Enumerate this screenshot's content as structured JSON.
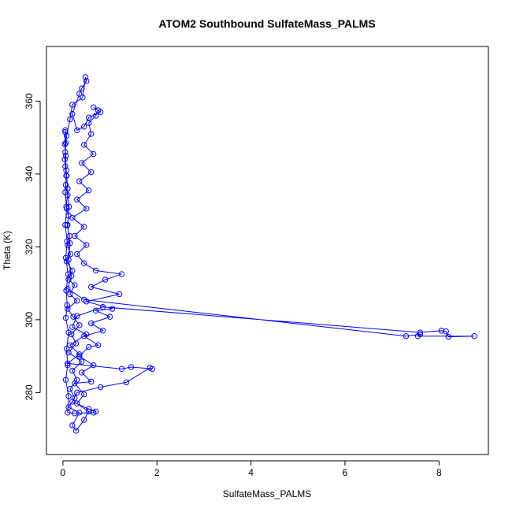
{
  "chart_data": {
    "type": "line",
    "title": "ATOM2 Southbound SulfateMass_PALMS",
    "xlabel": "SulfateMass_PALMS",
    "ylabel": "Theta (K)",
    "xlim": [
      -0.35,
      9.05
    ],
    "ylim": [
      263,
      375
    ],
    "x_ticks": [
      0,
      2,
      4,
      6,
      8
    ],
    "y_ticks": [
      280,
      300,
      320,
      340,
      360
    ],
    "grid": false,
    "legend": "none",
    "colors": {
      "series": "#0000ff",
      "axis": "#000000",
      "background": "#ffffff"
    },
    "series": [
      {
        "marker": "open-circle",
        "points": [
          [
            0.05,
            351.5
          ],
          [
            0.04,
            348.2
          ],
          [
            0.06,
            345.0
          ],
          [
            0.05,
            342.1
          ],
          [
            0.08,
            339.5
          ],
          [
            0.06,
            337.0
          ],
          [
            0.1,
            334.2
          ],
          [
            0.07,
            331.0
          ],
          [
            0.12,
            328.5
          ],
          [
            0.09,
            325.9
          ],
          [
            0.14,
            323.0
          ],
          [
            0.1,
            320.4
          ],
          [
            0.16,
            318.0
          ],
          [
            0.08,
            316.0
          ],
          [
            0.2,
            313.5
          ],
          [
            0.12,
            311.0
          ],
          [
            0.25,
            309.5
          ],
          [
            0.15,
            307.0
          ],
          [
            0.3,
            305.2
          ],
          [
            0.1,
            303.0
          ],
          [
            0.22,
            300.8
          ],
          [
            0.35,
            298.5
          ],
          [
            0.18,
            296.0
          ],
          [
            0.28,
            293.5
          ],
          [
            0.12,
            291.0
          ],
          [
            0.4,
            288.5
          ],
          [
            0.2,
            286.0
          ],
          [
            0.3,
            283.5
          ],
          [
            0.15,
            281.0
          ],
          [
            0.25,
            278.5
          ],
          [
            0.12,
            276.0
          ],
          [
            0.35,
            274.5
          ],
          [
            0.2,
            271.0
          ],
          [
            0.28,
            269.5
          ],
          [
            0.45,
            272.5
          ],
          [
            0.55,
            274.8
          ],
          [
            0.3,
            277.0
          ],
          [
            0.45,
            279.5
          ],
          [
            0.25,
            282.5
          ],
          [
            0.6,
            283.0
          ],
          [
            0.4,
            285.5
          ],
          [
            0.65,
            287.5
          ],
          [
            0.35,
            290.0
          ],
          [
            0.55,
            292.5
          ],
          [
            0.75,
            293.0
          ],
          [
            0.45,
            295.5
          ],
          [
            0.85,
            297.0
          ],
          [
            0.6,
            299.0
          ],
          [
            1.0,
            300.8
          ],
          [
            0.7,
            302.5
          ],
          [
            1.05,
            303.0
          ],
          [
            0.5,
            305.0
          ],
          [
            1.2,
            307.0
          ],
          [
            0.6,
            309.0
          ],
          [
            0.9,
            311.0
          ],
          [
            1.25,
            312.5
          ],
          [
            0.7,
            313.5
          ],
          [
            0.45,
            315.5
          ],
          [
            0.3,
            318.0
          ],
          [
            0.5,
            320.5
          ],
          [
            0.25,
            323.0
          ],
          [
            0.45,
            325.5
          ],
          [
            0.2,
            328.0
          ],
          [
            0.5,
            330.5
          ],
          [
            0.3,
            333.0
          ],
          [
            0.55,
            335.5
          ],
          [
            0.35,
            338.0
          ],
          [
            0.6,
            340.5
          ],
          [
            0.4,
            343.0
          ],
          [
            0.65,
            345.5
          ],
          [
            0.45,
            348.0
          ],
          [
            0.6,
            351.0
          ],
          [
            0.55,
            354.0
          ],
          [
            0.7,
            356.0
          ],
          [
            0.75,
            357.5
          ],
          [
            0.65,
            358.3
          ],
          [
            0.8,
            357.0
          ],
          [
            0.55,
            355.5
          ],
          [
            0.45,
            353.0
          ],
          [
            0.3,
            352.0
          ],
          [
            0.2,
            356.5
          ],
          [
            0.35,
            362.0
          ],
          [
            0.4,
            363.5
          ],
          [
            0.5,
            365.5
          ],
          [
            0.48,
            366.6
          ],
          [
            0.42,
            361.0
          ],
          [
            0.2,
            359.0
          ],
          [
            0.15,
            355.0
          ],
          [
            0.08,
            350.5
          ],
          [
            0.05,
            346.0
          ],
          [
            0.07,
            341.0
          ],
          [
            0.1,
            336.0
          ],
          [
            0.13,
            331.0
          ],
          [
            0.1,
            326.0
          ],
          [
            0.15,
            321.0
          ],
          [
            0.12,
            316.5
          ],
          [
            0.18,
            312.0
          ],
          [
            0.1,
            308.5
          ],
          [
            0.45,
            305.5
          ],
          [
            7.3,
            295.5
          ],
          [
            7.6,
            296.0
          ],
          [
            7.55,
            295.5
          ],
          [
            8.75,
            295.5
          ],
          [
            8.2,
            295.3
          ],
          [
            8.15,
            296.8
          ],
          [
            8.05,
            297.0
          ],
          [
            7.6,
            296.5
          ],
          [
            0.85,
            303.5
          ],
          [
            0.3,
            301.0
          ],
          [
            0.2,
            298.0
          ],
          [
            0.5,
            296.0
          ],
          [
            0.15,
            293.0
          ],
          [
            0.35,
            290.5
          ],
          [
            0.1,
            288.0
          ],
          [
            1.25,
            286.5
          ],
          [
            1.45,
            287.0
          ],
          [
            1.9,
            286.5
          ],
          [
            1.85,
            286.8
          ],
          [
            1.35,
            282.8
          ],
          [
            0.8,
            281.5
          ],
          [
            0.3,
            280.0
          ],
          [
            0.2,
            277.5
          ],
          [
            0.55,
            275.5
          ],
          [
            0.7,
            274.8
          ],
          [
            0.65,
            274.5
          ],
          [
            0.25,
            274.3
          ],
          [
            0.1,
            274.5
          ],
          [
            0.12,
            279.0
          ],
          [
            0.06,
            283.5
          ],
          [
            0.1,
            287.5
          ],
          [
            0.08,
            292.0
          ],
          [
            0.12,
            296.5
          ],
          [
            0.06,
            300.5
          ],
          [
            0.09,
            304.0
          ],
          [
            0.07,
            308.0
          ],
          [
            0.11,
            312.5
          ],
          [
            0.06,
            317.0
          ],
          [
            0.09,
            321.5
          ],
          [
            0.05,
            326.0
          ],
          [
            0.08,
            330.5
          ],
          [
            0.05,
            335.0
          ],
          [
            0.07,
            339.5
          ],
          [
            0.04,
            344.0
          ],
          [
            0.06,
            348.5
          ],
          [
            0.05,
            352.0
          ]
        ]
      }
    ]
  }
}
